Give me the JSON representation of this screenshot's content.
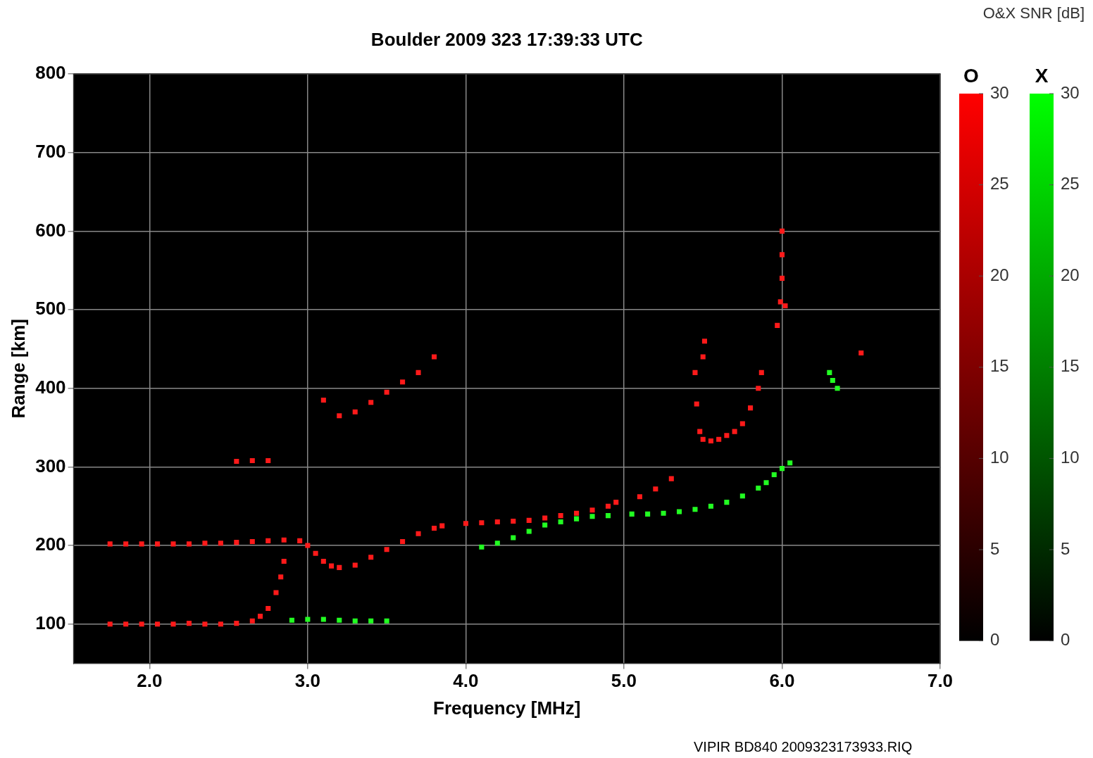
{
  "chart_data": {
    "type": "scatter",
    "title": "Boulder 2009 323 17:39:33 UTC",
    "x_label": "Frequency [MHz]",
    "y_label": "Range [km]",
    "footer": "VIPIR BD840 2009323173933.RIQ",
    "xlim": [
      1.52,
      7.0
    ],
    "xticks": [
      {
        "value": 2,
        "label": "2.0"
      },
      {
        "value": 3,
        "label": "3.0"
      },
      {
        "value": 4,
        "label": "4.0"
      },
      {
        "value": 5,
        "label": "5.0"
      },
      {
        "value": 6,
        "label": "6.0"
      },
      {
        "value": 7,
        "label": "7.0"
      }
    ],
    "ylim": [
      50,
      800
    ],
    "yticks": [
      100,
      200,
      300,
      400,
      500,
      600,
      700,
      800
    ],
    "grid": true,
    "series": [
      {
        "name": "O",
        "color": "#ff1a1a",
        "marker": "square",
        "values": [
          [
            1.75,
            100
          ],
          [
            1.85,
            100
          ],
          [
            1.95,
            100
          ],
          [
            2.05,
            100
          ],
          [
            2.15,
            100
          ],
          [
            2.25,
            101
          ],
          [
            2.35,
            100
          ],
          [
            2.45,
            100
          ],
          [
            2.55,
            101
          ],
          [
            2.65,
            104
          ],
          [
            2.7,
            110
          ],
          [
            2.75,
            120
          ],
          [
            2.8,
            140
          ],
          [
            2.83,
            160
          ],
          [
            2.85,
            180
          ],
          [
            1.75,
            202
          ],
          [
            1.85,
            202
          ],
          [
            1.95,
            202
          ],
          [
            2.05,
            202
          ],
          [
            2.15,
            202
          ],
          [
            2.25,
            202
          ],
          [
            2.35,
            203
          ],
          [
            2.45,
            203
          ],
          [
            2.55,
            204
          ],
          [
            2.65,
            205
          ],
          [
            2.75,
            206
          ],
          [
            2.85,
            207
          ],
          [
            2.95,
            206
          ],
          [
            3.0,
            200
          ],
          [
            3.05,
            190
          ],
          [
            3.1,
            180
          ],
          [
            3.15,
            174
          ],
          [
            3.2,
            172
          ],
          [
            3.3,
            175
          ],
          [
            3.4,
            185
          ],
          [
            3.5,
            195
          ],
          [
            3.6,
            205
          ],
          [
            3.7,
            215
          ],
          [
            3.8,
            222
          ],
          [
            3.85,
            225
          ],
          [
            4.0,
            228
          ],
          [
            4.1,
            229
          ],
          [
            4.2,
            230
          ],
          [
            4.3,
            231
          ],
          [
            4.4,
            232
          ],
          [
            4.5,
            235
          ],
          [
            4.6,
            238
          ],
          [
            4.7,
            241
          ],
          [
            4.8,
            245
          ],
          [
            4.9,
            250
          ],
          [
            4.95,
            255
          ],
          [
            5.1,
            262
          ],
          [
            5.2,
            272
          ],
          [
            5.3,
            285
          ],
          [
            5.45,
            420
          ],
          [
            5.46,
            380
          ],
          [
            5.48,
            345
          ],
          [
            5.5,
            335
          ],
          [
            5.55,
            333
          ],
          [
            5.6,
            335
          ],
          [
            5.65,
            340
          ],
          [
            5.7,
            345
          ],
          [
            5.75,
            355
          ],
          [
            5.8,
            375
          ],
          [
            5.85,
            400
          ],
          [
            5.87,
            420
          ],
          [
            5.5,
            440
          ],
          [
            5.51,
            460
          ],
          [
            5.97,
            480
          ],
          [
            5.99,
            510
          ],
          [
            6.0,
            540
          ],
          [
            6.0,
            570
          ],
          [
            6.0,
            600
          ],
          [
            6.02,
            505
          ],
          [
            3.1,
            385
          ],
          [
            3.2,
            365
          ],
          [
            3.3,
            370
          ],
          [
            3.4,
            382
          ],
          [
            3.5,
            395
          ],
          [
            3.6,
            408
          ],
          [
            3.7,
            420
          ],
          [
            3.8,
            440
          ],
          [
            2.55,
            307
          ],
          [
            2.65,
            308
          ],
          [
            2.75,
            308
          ],
          [
            6.5,
            445
          ]
        ]
      },
      {
        "name": "X",
        "color": "#22ff22",
        "marker": "square",
        "values": [
          [
            2.9,
            105
          ],
          [
            3.0,
            106
          ],
          [
            3.1,
            106
          ],
          [
            3.2,
            105
          ],
          [
            3.3,
            104
          ],
          [
            3.4,
            104
          ],
          [
            3.5,
            104
          ],
          [
            4.1,
            198
          ],
          [
            4.2,
            203
          ],
          [
            4.3,
            210
          ],
          [
            4.4,
            218
          ],
          [
            4.5,
            226
          ],
          [
            4.6,
            230
          ],
          [
            4.7,
            234
          ],
          [
            4.8,
            237
          ],
          [
            4.9,
            238
          ],
          [
            5.05,
            240
          ],
          [
            5.15,
            240
          ],
          [
            5.25,
            241
          ],
          [
            5.35,
            243
          ],
          [
            5.45,
            246
          ],
          [
            5.55,
            250
          ],
          [
            5.65,
            255
          ],
          [
            5.75,
            263
          ],
          [
            5.85,
            273
          ],
          [
            5.9,
            280
          ],
          [
            5.95,
            290
          ],
          [
            6.0,
            298
          ],
          [
            6.05,
            305
          ],
          [
            6.3,
            420
          ],
          [
            6.32,
            410
          ],
          [
            6.35,
            400
          ]
        ]
      }
    ],
    "colorbar": {
      "title": "O&X SNR [dB]",
      "bars": [
        {
          "name": "O",
          "color": "#ff0000",
          "range": [
            0,
            30
          ],
          "ticks": [
            0,
            5,
            10,
            15,
            20,
            25,
            30
          ]
        },
        {
          "name": "X",
          "color": "#00ff00",
          "range": [
            0,
            30
          ],
          "ticks": [
            0,
            5,
            10,
            15,
            20,
            25,
            30
          ]
        }
      ]
    }
  }
}
